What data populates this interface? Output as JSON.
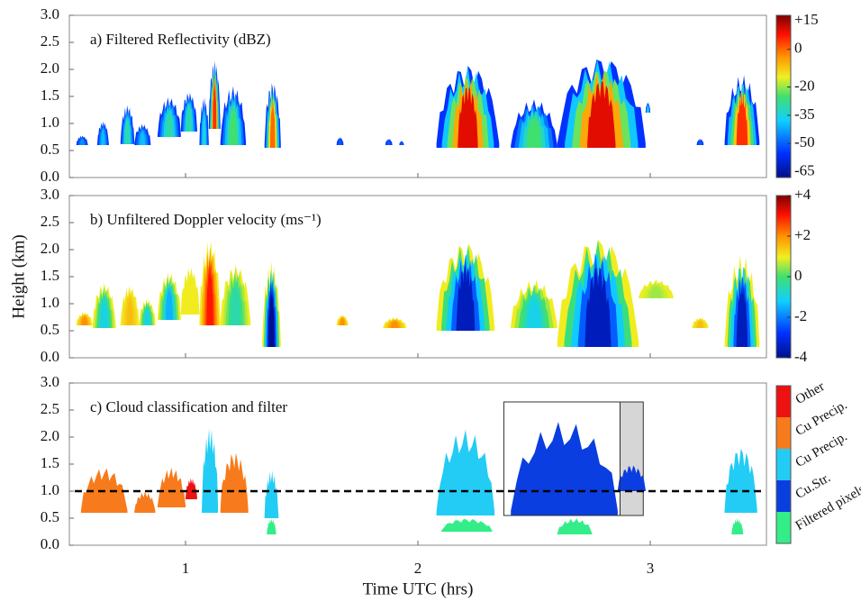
{
  "chart_data": [
    {
      "type": "heatmap",
      "title": "a) Filtered Reflectivity (dBZ)",
      "xlim": [
        0.5,
        3.5
      ],
      "xticks": [
        1,
        2,
        3
      ],
      "ylim": [
        0,
        3.0
      ],
      "yticks": [
        {
          "value": 0,
          "label": "0.0"
        },
        {
          "value": 0.5,
          "label": "0.5"
        },
        {
          "value": 1,
          "label": "1.0"
        },
        {
          "value": 1.5,
          "label": "1.5"
        },
        {
          "value": 2,
          "label": "2.0"
        },
        {
          "value": 2.5,
          "label": "2.5"
        },
        {
          "value": 3,
          "label": "3.0"
        }
      ],
      "colorbar": {
        "lim": [
          -68,
          18
        ],
        "ticks": [
          {
            "value": 15,
            "label": "+15"
          },
          0,
          -20,
          -35,
          -50,
          -65
        ]
      },
      "edge": -55,
      "cells": [
        {
          "x": [
            0.53,
            0.58
          ],
          "base": 0.6,
          "top": 0.78,
          "value": -45
        },
        {
          "x": [
            0.62,
            0.67
          ],
          "base": 0.6,
          "top": 1.05,
          "value": -40
        },
        {
          "x": [
            0.72,
            0.78
          ],
          "base": 0.62,
          "top": 1.35,
          "value": -30
        },
        {
          "x": [
            0.78,
            0.85
          ],
          "base": 0.6,
          "top": 1.0,
          "value": -40
        },
        {
          "x": [
            0.88,
            0.98
          ],
          "base": 0.75,
          "top": 1.5,
          "value": -30
        },
        {
          "x": [
            0.98,
            1.05
          ],
          "base": 0.85,
          "top": 1.6,
          "value": -30
        },
        {
          "x": [
            1.06,
            1.1
          ],
          "base": 0.6,
          "top": 1.5,
          "value": -35
        },
        {
          "x": [
            1.1,
            1.15
          ],
          "base": 0.9,
          "top": 2.2,
          "value": 5
        },
        {
          "x": [
            1.15,
            1.26
          ],
          "base": 0.6,
          "top": 1.7,
          "value": -25
        },
        {
          "x": [
            1.34,
            1.41
          ],
          "base": 0.55,
          "top": 1.8,
          "value": 0
        },
        {
          "x": [
            1.65,
            1.68
          ],
          "base": 0.6,
          "top": 0.75,
          "value": -50
        },
        {
          "x": [
            1.86,
            1.89
          ],
          "base": 0.6,
          "top": 0.72,
          "value": -50
        },
        {
          "x": [
            1.92,
            1.94
          ],
          "base": 0.6,
          "top": 0.68,
          "value": -50
        },
        {
          "x": [
            2.08,
            2.35
          ],
          "base": 0.55,
          "top": 2.15,
          "value": 10
        },
        {
          "x": [
            2.4,
            2.6
          ],
          "base": 0.55,
          "top": 1.45,
          "value": -25
        },
        {
          "x": [
            2.6,
            2.98
          ],
          "base": 0.55,
          "top": 2.3,
          "value": 10
        },
        {
          "x": [
            2.98,
            3.0
          ],
          "base": 1.2,
          "top": 1.4,
          "value": -35
        },
        {
          "x": [
            3.2,
            3.23
          ],
          "base": 0.6,
          "top": 0.72,
          "value": -50
        },
        {
          "x": [
            3.32,
            3.47
          ],
          "base": 0.6,
          "top": 1.9,
          "value": 5
        }
      ]
    },
    {
      "type": "heatmap",
      "title": "b) Unfiltered Doppler velocity (ms⁻¹)",
      "ylabel": "Height (km)",
      "xlim": [
        0.5,
        3.5
      ],
      "xticks": [
        1,
        2,
        3
      ],
      "ylim": [
        0,
        3.0
      ],
      "yticks": [
        {
          "value": 0,
          "label": "0.0"
        },
        {
          "value": 0.5,
          "label": "0.5"
        },
        {
          "value": 1,
          "label": "1.0"
        },
        {
          "value": 1.5,
          "label": "1.5"
        },
        {
          "value": 2,
          "label": "2.0"
        },
        {
          "value": 2.5,
          "label": "2.5"
        },
        {
          "value": 3,
          "label": "3.0"
        }
      ],
      "colorbar": {
        "lim": [
          -4,
          4
        ],
        "ticks": [
          {
            "value": 4,
            "label": "+4"
          },
          {
            "value": 2,
            "label": "+2"
          },
          0,
          -2,
          -4
        ]
      },
      "edge": 1,
      "cells": [
        {
          "x": [
            0.53,
            0.6
          ],
          "base": 0.6,
          "top": 0.85,
          "value": 2
        },
        {
          "x": [
            0.6,
            0.7
          ],
          "base": 0.55,
          "top": 1.4,
          "value": -1
        },
        {
          "x": [
            0.72,
            0.8
          ],
          "base": 0.6,
          "top": 1.35,
          "value": 1.5
        },
        {
          "x": [
            0.8,
            0.87
          ],
          "base": 0.6,
          "top": 1.1,
          "value": -1
        },
        {
          "x": [
            0.88,
            0.98
          ],
          "base": 0.7,
          "top": 1.6,
          "value": -1.5
        },
        {
          "x": [
            0.98,
            1.06
          ],
          "base": 0.8,
          "top": 1.7,
          "value": 1
        },
        {
          "x": [
            1.06,
            1.15
          ],
          "base": 0.6,
          "top": 2.2,
          "value": 3
        },
        {
          "x": [
            1.15,
            1.28
          ],
          "base": 0.6,
          "top": 1.75,
          "value": -0.5
        },
        {
          "x": [
            1.33,
            1.41
          ],
          "base": 0.2,
          "top": 1.8,
          "value": -4
        },
        {
          "x": [
            1.65,
            1.7
          ],
          "base": 0.6,
          "top": 0.8,
          "value": 2
        },
        {
          "x": [
            1.85,
            1.95
          ],
          "base": 0.55,
          "top": 0.75,
          "value": 2
        },
        {
          "x": [
            2.08,
            2.33
          ],
          "base": 0.5,
          "top": 2.2,
          "value": -3.5
        },
        {
          "x": [
            2.4,
            2.6
          ],
          "base": 0.55,
          "top": 1.45,
          "value": -1
        },
        {
          "x": [
            2.6,
            2.95
          ],
          "base": 0.2,
          "top": 2.3,
          "value": -3.5
        },
        {
          "x": [
            2.95,
            3.1
          ],
          "base": 1.1,
          "top": 1.45,
          "value": 0.5
        },
        {
          "x": [
            3.18,
            3.25
          ],
          "base": 0.55,
          "top": 0.75,
          "value": 1.5
        },
        {
          "x": [
            3.32,
            3.47
          ],
          "base": 0.2,
          "top": 1.9,
          "value": -3.5
        }
      ]
    },
    {
      "type": "classes",
      "title": "c) Cloud classification and filter",
      "xlabel": "Time UTC (hrs)",
      "xlim": [
        0.5,
        3.5
      ],
      "xticks": [
        1,
        2,
        3
      ],
      "ylim": [
        0,
        3.0
      ],
      "yticks": [
        {
          "value": 0,
          "label": "0.0"
        },
        {
          "value": 0.5,
          "label": "0.5"
        },
        {
          "value": 1,
          "label": "1.0"
        },
        {
          "value": 1.5,
          "label": "1.5"
        },
        {
          "value": 2,
          "label": "2.0"
        },
        {
          "value": 2.5,
          "label": "2.5"
        },
        {
          "value": 3,
          "label": "3.0"
        }
      ],
      "classes": [
        {
          "name": "Other",
          "color": "#ee1111"
        },
        {
          "name": "Cu Precip.",
          "color": "#f77b1c"
        },
        {
          "name": "Cu Precip.",
          "color": "#22ccf5"
        },
        {
          "name": "Cu.Str.",
          "color": "#0a3ee0"
        },
        {
          "name": "Filtered pixels",
          "color": "#33ee88"
        }
      ],
      "hline": 1.0,
      "boxes": [
        {
          "x": [
            2.87,
            2.97
          ],
          "y": [
            0.55,
            2.65
          ],
          "fill": "#d6d6d6"
        },
        {
          "x": [
            2.37,
            2.87
          ],
          "y": [
            0.55,
            2.65
          ]
        }
      ],
      "cells": [
        {
          "x": [
            0.55,
            0.75
          ],
          "base": 0.6,
          "top": 1.45,
          "class": 1
        },
        {
          "x": [
            0.78,
            0.87
          ],
          "base": 0.6,
          "top": 1.0,
          "class": 1
        },
        {
          "x": [
            0.88,
            1.0
          ],
          "base": 0.7,
          "top": 1.45,
          "class": 1
        },
        {
          "x": [
            1.0,
            1.05
          ],
          "base": 0.85,
          "top": 1.25,
          "class": 0
        },
        {
          "x": [
            1.07,
            1.14
          ],
          "base": 0.6,
          "top": 2.2,
          "class": 2
        },
        {
          "x": [
            1.15,
            1.27
          ],
          "base": 0.6,
          "top": 1.75,
          "class": 1
        },
        {
          "x": [
            1.34,
            1.4
          ],
          "base": 0.5,
          "top": 1.4,
          "class": 2
        },
        {
          "x": [
            1.35,
            1.39
          ],
          "base": 0.2,
          "top": 0.5,
          "class": 4
        },
        {
          "x": [
            2.08,
            2.33
          ],
          "base": 0.55,
          "top": 2.15,
          "class": 2
        },
        {
          "x": [
            2.1,
            2.32
          ],
          "base": 0.25,
          "top": 0.5,
          "class": 4
        },
        {
          "x": [
            2.4,
            2.86
          ],
          "base": 0.55,
          "top": 2.3,
          "class": 3
        },
        {
          "x": [
            2.86,
            2.98
          ],
          "base": 1.0,
          "top": 1.5,
          "class": 3
        },
        {
          "x": [
            2.6,
            2.75
          ],
          "base": 0.2,
          "top": 0.5,
          "class": 4
        },
        {
          "x": [
            3.32,
            3.46
          ],
          "base": 0.6,
          "top": 1.85,
          "class": 2
        },
        {
          "x": [
            3.35,
            3.4
          ],
          "base": 0.2,
          "top": 0.5,
          "class": 4
        }
      ]
    }
  ]
}
